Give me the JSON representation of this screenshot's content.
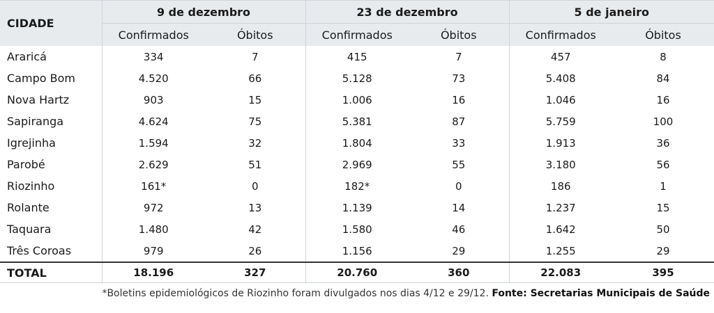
{
  "header": {
    "city": "CIDADE",
    "periods": [
      "9 de dezembro",
      "23 de dezembro",
      "5 de janeiro"
    ],
    "confirmed": "Confirmados",
    "deaths": "Óbitos"
  },
  "rows": [
    {
      "city": "Araricá",
      "v": [
        "334",
        "7",
        "415",
        "7",
        "457",
        "8"
      ]
    },
    {
      "city": "Campo Bom",
      "v": [
        "4.520",
        "66",
        "5.128",
        "73",
        "5.408",
        "84"
      ]
    },
    {
      "city": "Nova Hartz",
      "v": [
        "903",
        "15",
        "1.006",
        "16",
        "1.046",
        "16"
      ]
    },
    {
      "city": "Sapiranga",
      "v": [
        "4.624",
        "75",
        "5.381",
        "87",
        "5.759",
        "100"
      ]
    },
    {
      "city": "Igrejinha",
      "v": [
        "1.594",
        "32",
        "1.804",
        "33",
        "1.913",
        "36"
      ]
    },
    {
      "city": "Parobé",
      "v": [
        "2.629",
        "51",
        "2.969",
        "55",
        "3.180",
        "56"
      ]
    },
    {
      "city": "Riozinho",
      "v": [
        "161*",
        "0",
        "182*",
        "0",
        "186",
        "1"
      ]
    },
    {
      "city": "Rolante",
      "v": [
        "972",
        "13",
        "1.139",
        "14",
        "1.237",
        "15"
      ]
    },
    {
      "city": "Taquara",
      "v": [
        "1.480",
        "42",
        "1.580",
        "46",
        "1.642",
        "50"
      ]
    },
    {
      "city": "Três Coroas",
      "v": [
        "979",
        "26",
        "1.156",
        "29",
        "1.255",
        "29"
      ]
    }
  ],
  "total": {
    "city": "TOTAL",
    "v": [
      "18.196",
      "327",
      "20.760",
      "360",
      "22.083",
      "395"
    ]
  },
  "footnote": {
    "note": "*Boletins epidemiológicos de Riozinho foram divulgados nos dias 4/12 e 29/12. ",
    "source": "Fonte: Secretarias Municipais de Saúde"
  }
}
